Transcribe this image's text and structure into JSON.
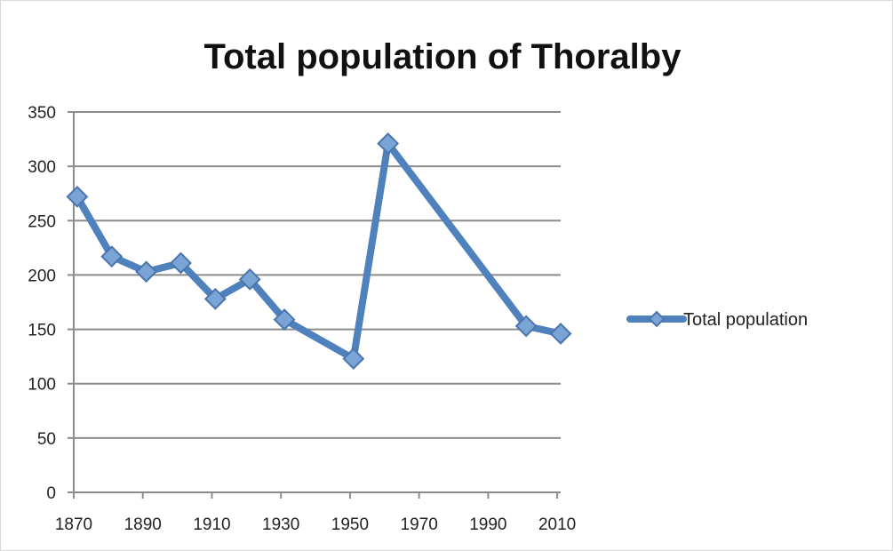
{
  "chart_data": {
    "type": "line",
    "title": "Total population of Thoralby",
    "xlabel": "",
    "ylabel": "",
    "xlim": [
      1870,
      2011
    ],
    "ylim": [
      0,
      350
    ],
    "x_ticks": [
      1870,
      1890,
      1910,
      1930,
      1950,
      1970,
      1990,
      2010
    ],
    "y_ticks": [
      0,
      50,
      100,
      150,
      200,
      250,
      300,
      350
    ],
    "grid": "horizontal",
    "legend": "right",
    "series": [
      {
        "name": "Total population",
        "color": "#4f81bd",
        "marker": "diamond",
        "x": [
          1871,
          1881,
          1891,
          1901,
          1911,
          1921,
          1931,
          1951,
          1961,
          2001,
          2011
        ],
        "y": [
          272,
          217,
          203,
          211,
          178,
          196,
          159,
          123,
          321,
          153,
          146
        ]
      }
    ]
  }
}
